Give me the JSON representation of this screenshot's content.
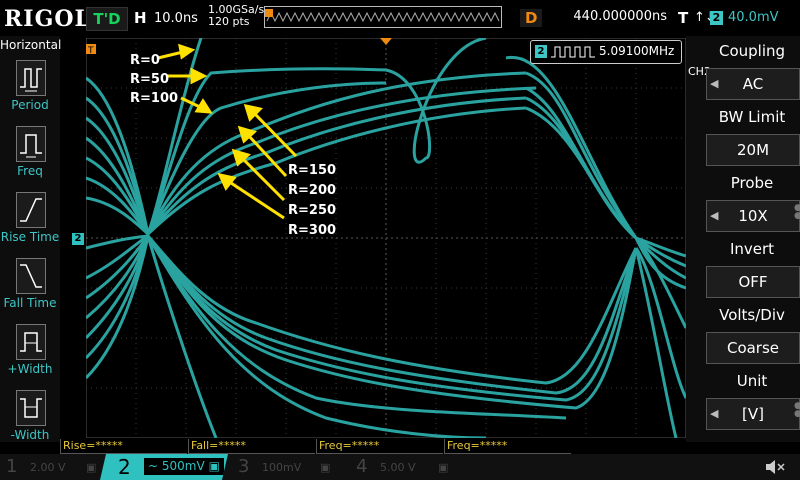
{
  "top": {
    "logo": "RIGOL",
    "trigger_status": "T'D",
    "h_letter": "H",
    "h_scale": "10.0ns",
    "sample_rate": "1.00GSa/s",
    "mem_depth": "120 pts",
    "delay_letter": "D",
    "delay_value": "440.000000ns",
    "trig_T": "T",
    "trig_edge": "↑↓",
    "trig_channel": "2",
    "trig_level": "40.0mV"
  },
  "left_menu": {
    "title": "Horizontal",
    "items": [
      {
        "label": "Period"
      },
      {
        "label": "Freq"
      },
      {
        "label": "Rise Time"
      },
      {
        "label": "Fall Time"
      },
      {
        "label": "+Width"
      },
      {
        "label": "-Width"
      }
    ]
  },
  "freq_readout": {
    "channel": "2",
    "value": "5.09100MHz"
  },
  "annotations": {
    "top_labels": [
      "R=0",
      "R=50",
      "R=100"
    ],
    "bottom_labels": [
      "R=150",
      "R=200",
      "R=250",
      "R=300"
    ]
  },
  "markers": {
    "trig_marker": "T",
    "left_ch_marker": "2",
    "right_trig_marker": "T"
  },
  "right_menu": {
    "channel": "CH2",
    "items": [
      {
        "title": "Coupling",
        "value": "AC"
      },
      {
        "title": "BW Limit",
        "value": "20M"
      },
      {
        "title": "Probe",
        "value": "10X"
      },
      {
        "title": "Invert",
        "value": "OFF"
      },
      {
        "title": "Volts/Div",
        "value": "Coarse"
      },
      {
        "title": "Unit",
        "value": "[V]"
      }
    ]
  },
  "measurements": [
    "Rise=*****",
    "Fall=*****",
    "Freq=*****",
    "Freq=*****"
  ],
  "channels": [
    {
      "num": "1",
      "value": "2.00 V"
    },
    {
      "num": "2",
      "value": "~ 500mV"
    },
    {
      "num": "3",
      "value": "100mV"
    },
    {
      "num": "4",
      "value": "5.00 V"
    }
  ],
  "colors": {
    "trace": "#2aa3a0",
    "ch2": "#2fc0c0",
    "annotation": "#ffe100",
    "marker": "#f08a10"
  }
}
